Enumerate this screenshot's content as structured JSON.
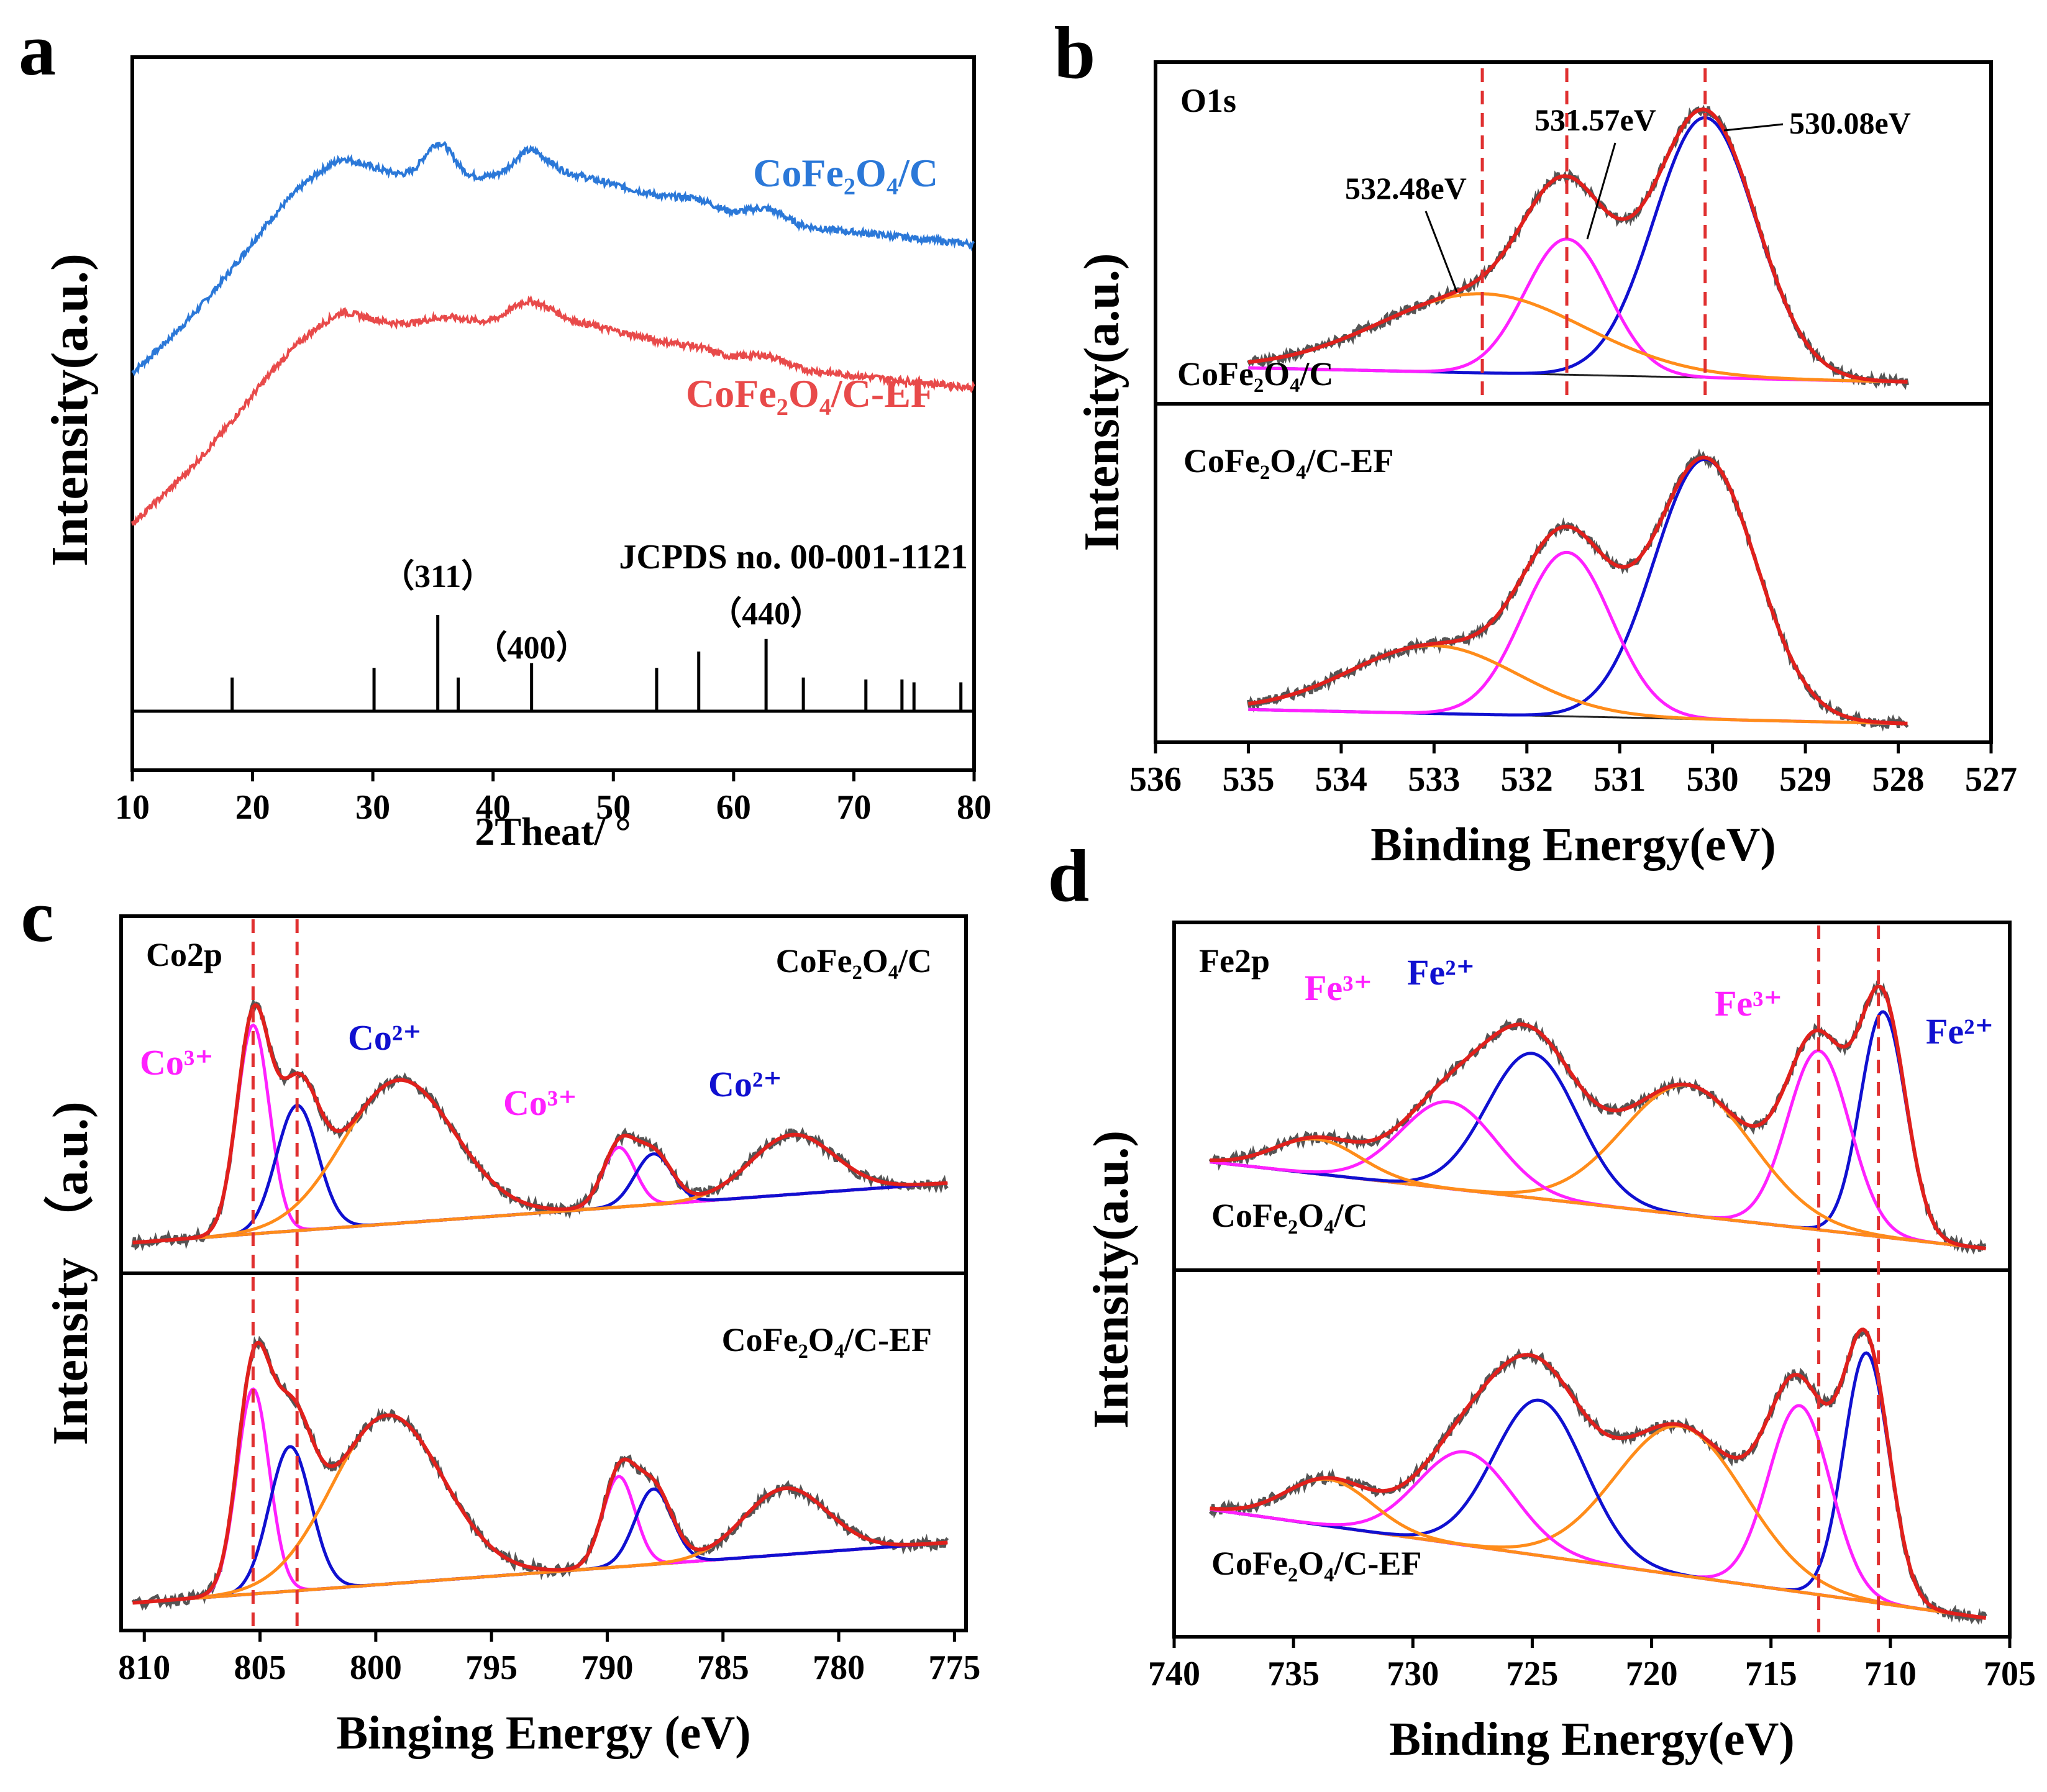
{
  "colors": {
    "blue_trace": "#2b78d8",
    "red_trace": "#e84a4a",
    "fit_red": "#e0201c",
    "peak_blue": "#1010d0",
    "peak_magenta": "#ff20ff",
    "peak_orange": "#ff8c1a",
    "baseline": "#222222",
    "raw_gray": "#555555",
    "guide_dash": "#e03030",
    "label_blue": "#2b78d8",
    "label_red": "#e84a4a"
  },
  "chart_data": [
    {
      "id": "a",
      "type": "line",
      "panel_letter": "a",
      "xlabel": "2Theat/ °",
      "ylabel": "Intensity(a.u.)",
      "xlim": [
        10,
        80
      ],
      "xticks": [
        10,
        20,
        30,
        40,
        50,
        60,
        70,
        80
      ],
      "series": [
        {
          "name": "CoFe₂O₄/C",
          "color": "blue_trace",
          "offset": 0.62,
          "baseline": [
            0.05,
            0.55,
            0.62,
            0.47,
            0.41
          ],
          "peaks": [
            [
              24.5,
              0.12,
              5
            ],
            [
              35.5,
              0.1,
              1.2
            ],
            [
              43.0,
              0.06,
              1.2
            ],
            [
              57.0,
              0.02,
              1.5
            ],
            [
              62.7,
              0.04,
              1.5
            ]
          ]
        },
        {
          "name": "CoFe₂O₄/C-EF",
          "color": "red_trace",
          "offset": 0.25,
          "baseline": [
            0.0,
            0.5,
            0.58,
            0.44,
            0.38
          ],
          "peaks": [
            [
              24.5,
              0.11,
              5
            ],
            [
              36.0,
              0.03,
              2
            ],
            [
              42.8,
              0.05,
              1.5
            ],
            [
              57.0,
              0.01,
              1.5
            ],
            [
              62.7,
              0.03,
              1.5
            ]
          ]
        }
      ],
      "reference": {
        "label": "JCPDS no. 00-001-1121",
        "lines": [
          [
            18.3,
            0.35
          ],
          [
            30.1,
            0.45
          ],
          [
            35.4,
            1.0
          ],
          [
            37.1,
            0.35
          ],
          [
            43.2,
            0.5
          ],
          [
            53.6,
            0.45
          ],
          [
            57.1,
            0.62
          ],
          [
            62.7,
            0.75
          ],
          [
            65.8,
            0.35
          ],
          [
            71.0,
            0.33
          ],
          [
            74.0,
            0.33
          ],
          [
            75.0,
            0.3
          ],
          [
            78.9,
            0.3
          ]
        ],
        "hkl": [
          {
            "text": "（311）",
            "x": 35.4
          },
          {
            "text": "（400）",
            "x": 43.2
          },
          {
            "text": "（440）",
            "x": 62.7
          }
        ]
      }
    },
    {
      "id": "b",
      "type": "line",
      "panel_letter": "b",
      "xlabel": "Binding Energy(eV)",
      "ylabel": "Intensity(a.u.)",
      "xlim": [
        536,
        527
      ],
      "xticks": [
        536,
        535,
        534,
        533,
        532,
        531,
        530,
        529,
        528,
        527
      ],
      "element_label": "O1s",
      "guides": [
        532.48,
        531.57,
        530.08
      ],
      "annotations": [
        "532.48eV",
        "531.57eV",
        "530.08eV"
      ],
      "subplots": [
        {
          "name": "CoFe₂O₄/C",
          "range": [
            535,
            527.9
          ],
          "bg": [
            0.05,
            0.0
          ],
          "components": [
            {
              "center": 530.08,
              "amp": 0.92,
              "width": 0.55,
              "color": "peak_blue"
            },
            {
              "center": 531.57,
              "amp": 0.48,
              "width": 0.45,
              "color": "peak_magenta"
            },
            {
              "center": 532.48,
              "amp": 0.28,
              "width": 1.1,
              "color": "peak_orange"
            }
          ]
        },
        {
          "name": "CoFe₂O₄/C-EF",
          "range": [
            535,
            527.9
          ],
          "bg": [
            0.05,
            0.0
          ],
          "components": [
            {
              "center": 530.08,
              "amp": 0.92,
              "width": 0.55,
              "color": "peak_blue"
            },
            {
              "center": 531.57,
              "amp": 0.58,
              "width": 0.48,
              "color": "peak_magenta"
            },
            {
              "center": 533.0,
              "amp": 0.24,
              "width": 0.9,
              "color": "peak_orange"
            }
          ]
        }
      ]
    },
    {
      "id": "c",
      "type": "line",
      "panel_letter": "c",
      "xlabel": "Binging Energy (eV)",
      "ylabel": "Intensity （a.u.)",
      "xlim": [
        811,
        774.5
      ],
      "xticks": [
        810,
        805,
        800,
        795,
        790,
        785,
        780,
        775
      ],
      "element_label": "Co2p",
      "guides": [
        805.3,
        803.4
      ],
      "annotations": [
        "Co³⁺",
        "Co²⁺",
        "Co³⁺",
        "Co²⁺"
      ],
      "subplots": [
        {
          "name": "CoFe₂O₄/C",
          "range": [
            810.5,
            775.3
          ],
          "bg": [
            0.03,
            0.23
          ],
          "components": [
            {
              "center": 805.3,
              "amp": 0.7,
              "width": 0.7,
              "color": "peak_magenta"
            },
            {
              "center": 803.4,
              "amp": 0.42,
              "width": 0.9,
              "color": "peak_blue"
            },
            {
              "center": 799.0,
              "amp": 0.48,
              "width": 2.4,
              "color": "peak_orange"
            },
            {
              "center": 789.5,
              "amp": 0.2,
              "width": 0.7,
              "color": "peak_magenta"
            },
            {
              "center": 788.0,
              "amp": 0.17,
              "width": 0.8,
              "color": "peak_blue"
            },
            {
              "center": 782.0,
              "amp": 0.2,
              "width": 1.8,
              "color": "peak_orange"
            }
          ]
        },
        {
          "name": "CoFe₂O₄/C-EF",
          "range": [
            810.5,
            775.3
          ],
          "bg": [
            0.03,
            0.23
          ],
          "components": [
            {
              "center": 805.3,
              "amp": 0.68,
              "width": 0.7,
              "color": "peak_magenta"
            },
            {
              "center": 803.7,
              "amp": 0.48,
              "width": 0.9,
              "color": "peak_blue"
            },
            {
              "center": 799.5,
              "amp": 0.56,
              "width": 2.4,
              "color": "peak_orange"
            },
            {
              "center": 789.5,
              "amp": 0.3,
              "width": 0.7,
              "color": "peak_magenta"
            },
            {
              "center": 788.0,
              "amp": 0.25,
              "width": 0.8,
              "color": "peak_blue"
            },
            {
              "center": 782.3,
              "amp": 0.22,
              "width": 1.8,
              "color": "peak_orange"
            }
          ]
        }
      ]
    },
    {
      "id": "d",
      "type": "line",
      "panel_letter": "d",
      "xlabel": "Binding Energy(eV)",
      "ylabel": "Intensity(a.u.)",
      "xlim": [
        740,
        705
      ],
      "xticks": [
        740,
        735,
        730,
        725,
        720,
        715,
        710,
        705
      ],
      "element_label": "Fe2p",
      "guides": [
        713.0,
        710.5
      ],
      "annotations": [
        "Fe³⁺",
        "Fe²⁺",
        "Fe³⁺",
        "Fe²⁺"
      ],
      "subplots": [
        {
          "name": "CoFe₂O₄/C",
          "range": [
            738.5,
            706
          ],
          "bg": [
            0.3,
            0.0
          ],
          "components": [
            {
              "center": 710.3,
              "amp": 0.78,
              "width": 0.95,
              "color": "peak_blue"
            },
            {
              "center": 713.0,
              "amp": 0.62,
              "width": 1.3,
              "color": "peak_magenta"
            },
            {
              "center": 718.5,
              "amp": 0.45,
              "width": 2.7,
              "color": "peak_orange"
            },
            {
              "center": 725.0,
              "amp": 0.5,
              "width": 1.9,
              "color": "peak_blue"
            },
            {
              "center": 728.5,
              "amp": 0.3,
              "width": 2.0,
              "color": "peak_magenta"
            },
            {
              "center": 734.0,
              "amp": 0.12,
              "width": 1.8,
              "color": "peak_orange"
            }
          ]
        },
        {
          "name": "CoFe₂O₄/C-EF",
          "range": [
            738.5,
            706
          ],
          "bg": [
            0.35,
            0.0
          ],
          "components": [
            {
              "center": 711.0,
              "amp": 0.8,
              "width": 0.95,
              "color": "peak_blue"
            },
            {
              "center": 713.8,
              "amp": 0.6,
              "width": 1.3,
              "color": "peak_magenta"
            },
            {
              "center": 718.8,
              "amp": 0.48,
              "width": 2.7,
              "color": "peak_orange"
            },
            {
              "center": 724.7,
              "amp": 0.5,
              "width": 1.9,
              "color": "peak_blue"
            },
            {
              "center": 727.8,
              "amp": 0.3,
              "width": 2.0,
              "color": "peak_magenta"
            },
            {
              "center": 733.5,
              "amp": 0.15,
              "width": 1.8,
              "color": "peak_orange"
            }
          ]
        }
      ]
    }
  ]
}
